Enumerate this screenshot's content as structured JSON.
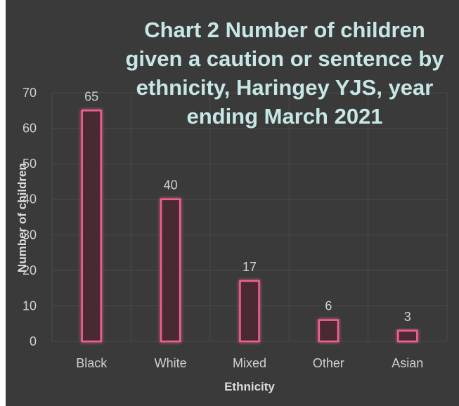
{
  "chart_data": {
    "type": "bar",
    "title_lines": [
      "Chart 2 Number of children",
      "given a caution or sentence by",
      "ethnicity, Haringey YJS, year",
      "ending March 2021"
    ],
    "categories": [
      "Black",
      "White",
      "Mixed",
      "Other",
      "Asian"
    ],
    "values": [
      65,
      40,
      17,
      6,
      3
    ],
    "data_labels": [
      "65",
      "40",
      "17",
      "6",
      "3"
    ],
    "xlabel": "Ethnicity",
    "ylabel": "Number of children",
    "ylim": [
      0,
      70
    ],
    "yticks": [
      0,
      10,
      20,
      30,
      40,
      50,
      60,
      70
    ],
    "grid": true,
    "legend": "none",
    "colors": {
      "background": "#3a3a3a",
      "bar_fill": "#4a2a33",
      "bar_stroke": "#f0628e",
      "bar_glow": "#c2365f",
      "text": "#d0d0d0",
      "title": "#c6e7e6",
      "grid": "#4a4a4a"
    }
  }
}
